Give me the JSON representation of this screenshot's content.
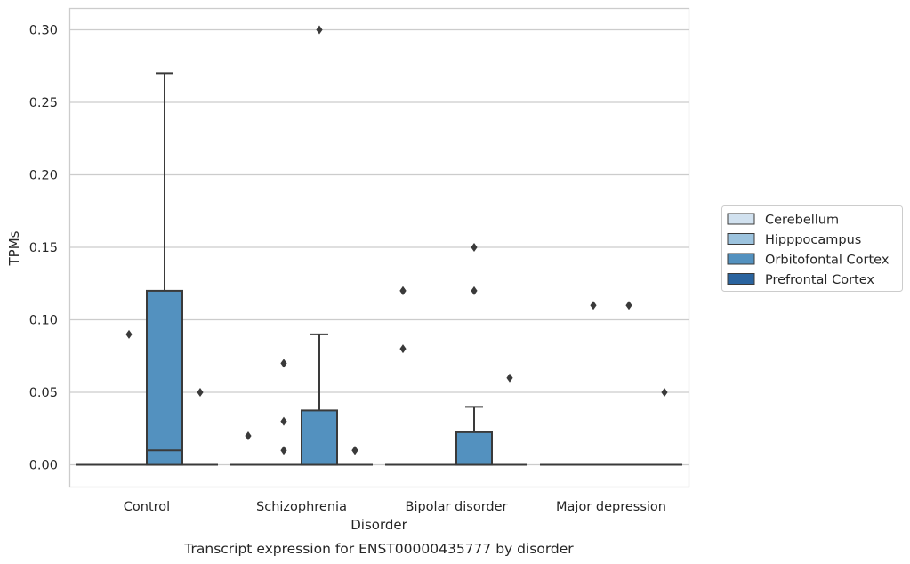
{
  "chart_data": {
    "type": "box",
    "title": "",
    "caption": "Transcript expression for ENST00000435777 by disorder",
    "xlabel": "Disorder",
    "ylabel": "TPMs",
    "categories": [
      "Control",
      "Schizophrenia",
      "Bipolar disorder",
      "Major depression"
    ],
    "ylim": [
      -0.015,
      0.315
    ],
    "yticks": [
      0.0,
      0.05,
      0.1,
      0.15,
      0.2,
      0.25,
      0.3
    ],
    "ytick_labels": [
      "0.00",
      "0.05",
      "0.10",
      "0.15",
      "0.20",
      "0.25",
      "0.30"
    ],
    "grid": true,
    "legend_position": "right",
    "series": [
      {
        "name": "Cerebellum",
        "color": "#d1e1ef"
      },
      {
        "name": "Hipppocampus",
        "color": "#9cc3de"
      },
      {
        "name": "Orbitofontal Cortex",
        "color": "#5391bf"
      },
      {
        "name": "Prefrontal Cortex",
        "color": "#2a649f"
      }
    ],
    "boxes": [
      {
        "category": "Control",
        "series": "Cerebellum",
        "q1": 0,
        "median": 0,
        "q3": 0,
        "whisker_low": 0,
        "whisker_high": 0,
        "outliers": []
      },
      {
        "category": "Control",
        "series": "Hipppocampus",
        "q1": 0,
        "median": 0,
        "q3": 0,
        "whisker_low": 0,
        "whisker_high": 0,
        "outliers": [
          0.09
        ]
      },
      {
        "category": "Control",
        "series": "Orbitofontal Cortex",
        "q1": 0,
        "median": 0.01,
        "q3": 0.12,
        "whisker_low": 0,
        "whisker_high": 0.27,
        "outliers": []
      },
      {
        "category": "Control",
        "series": "Prefrontal Cortex",
        "q1": 0,
        "median": 0,
        "q3": 0,
        "whisker_low": 0,
        "whisker_high": 0,
        "outliers": [
          0.05
        ]
      },
      {
        "category": "Schizophrenia",
        "series": "Cerebellum",
        "q1": 0,
        "median": 0,
        "q3": 0,
        "whisker_low": 0,
        "whisker_high": 0,
        "outliers": [
          0.02
        ]
      },
      {
        "category": "Schizophrenia",
        "series": "Hipppocampus",
        "q1": 0,
        "median": 0,
        "q3": 0,
        "whisker_low": 0,
        "whisker_high": 0,
        "outliers": [
          0.01,
          0.03,
          0.07
        ]
      },
      {
        "category": "Schizophrenia",
        "series": "Orbitofontal Cortex",
        "q1": 0,
        "median": 0,
        "q3": 0.0375,
        "whisker_low": 0,
        "whisker_high": 0.09,
        "outliers": [
          0.3
        ]
      },
      {
        "category": "Schizophrenia",
        "series": "Prefrontal Cortex",
        "q1": 0,
        "median": 0,
        "q3": 0,
        "whisker_low": 0,
        "whisker_high": 0,
        "outliers": [
          0.01,
          0.01
        ]
      },
      {
        "category": "Bipolar disorder",
        "series": "Cerebellum",
        "q1": 0,
        "median": 0,
        "q3": 0,
        "whisker_low": 0,
        "whisker_high": 0,
        "outliers": [
          0.08,
          0.12,
          0.12
        ]
      },
      {
        "category": "Bipolar disorder",
        "series": "Hipppocampus",
        "q1": 0,
        "median": 0,
        "q3": 0,
        "whisker_low": 0,
        "whisker_high": 0,
        "outliers": []
      },
      {
        "category": "Bipolar disorder",
        "series": "Orbitofontal Cortex",
        "q1": 0,
        "median": 0,
        "q3": 0.0225,
        "whisker_low": 0,
        "whisker_high": 0.04,
        "outliers": [
          0.12,
          0.15
        ]
      },
      {
        "category": "Bipolar disorder",
        "series": "Prefrontal Cortex",
        "q1": 0,
        "median": 0,
        "q3": 0,
        "whisker_low": 0,
        "whisker_high": 0,
        "outliers": [
          0.06
        ]
      },
      {
        "category": "Major depression",
        "series": "Cerebellum",
        "q1": 0,
        "median": 0,
        "q3": 0,
        "whisker_low": 0,
        "whisker_high": 0,
        "outliers": []
      },
      {
        "category": "Major depression",
        "series": "Hipppocampus",
        "q1": 0,
        "median": 0,
        "q3": 0,
        "whisker_low": 0,
        "whisker_high": 0,
        "outliers": [
          0.11
        ]
      },
      {
        "category": "Major depression",
        "series": "Orbitofontal Cortex",
        "q1": 0,
        "median": 0,
        "q3": 0,
        "whisker_low": 0,
        "whisker_high": 0,
        "outliers": [
          0.11
        ]
      },
      {
        "category": "Major depression",
        "series": "Prefrontal Cortex",
        "q1": 0,
        "median": 0,
        "q3": 0,
        "whisker_low": 0,
        "whisker_high": 0,
        "outliers": [
          0.05
        ]
      }
    ]
  }
}
